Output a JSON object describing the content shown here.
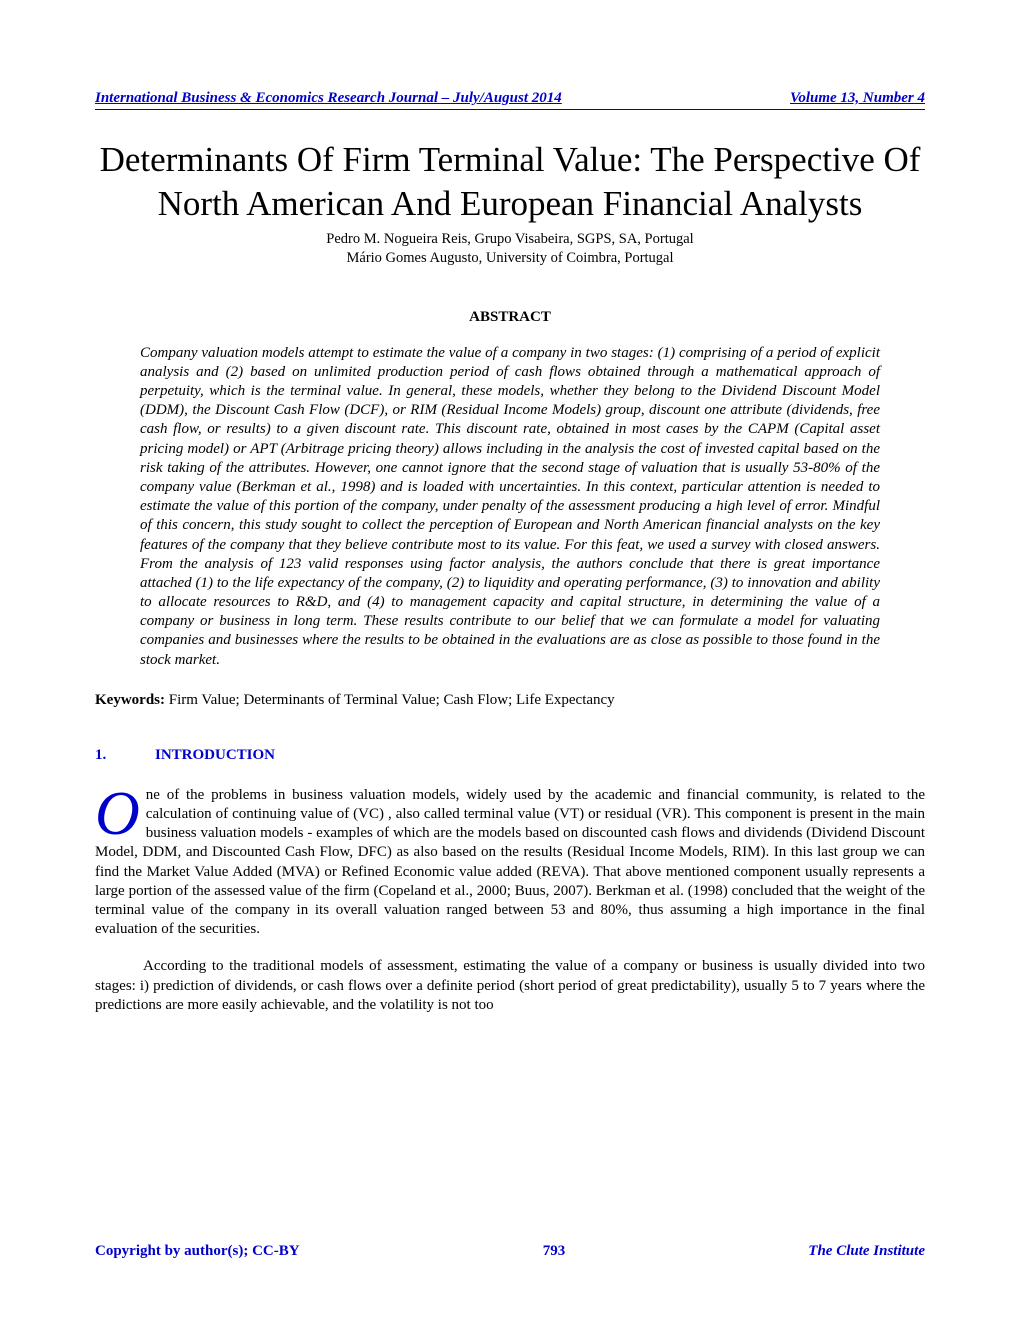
{
  "header": {
    "journal": "International Business & Economics Research Journal – July/August 2014",
    "volume": "Volume 13, Number 4"
  },
  "title": "Determinants Of Firm Terminal Value:  The Perspective Of North American And European Financial Analysts",
  "authors": {
    "line1": "Pedro M. Nogueira Reis, Grupo Visabeira, SGPS, SA, Portugal",
    "line2": "Mário Gomes Augusto, University of Coimbra, Portugal"
  },
  "abstract": {
    "heading": "ABSTRACT",
    "text": "Company valuation models attempt to estimate the value of a company in two stages: (1) comprising of a period of explicit analysis and (2) based on unlimited production period of cash flows obtained through a mathematical approach of perpetuity, which is the terminal value. In general, these models, whether they belong to the Dividend Discount Model (DDM), the Discount Cash Flow (DCF), or RIM (Residual Income Models) group, discount one attribute (dividends, free cash flow, or results) to a given discount rate. This discount rate, obtained in most cases by the CAPM (Capital asset pricing model) or APT (Arbitrage pricing theory) allows including in the analysis the cost of invested capital based on the risk taking of the attributes. However, one cannot ignore that the second stage of valuation that is usually 53-80% of the company value (Berkman et al., 1998) and is loaded with uncertainties. In this context, particular attention is needed to estimate the value of this portion of the company, under penalty of the assessment producing a high level of error. Mindful of this concern, this study sought to collect the perception of European and North American financial analysts on the key features of the company that they believe contribute most to its value. For this feat, we used a survey with closed answers. From the analysis of 123 valid responses using factor analysis, the authors conclude that there is great importance attached (1) to the life expectancy of the company, (2) to liquidity and operating performance, (3) to innovation and ability to allocate resources to R&D, and (4) to management capacity and capital structure, in determining the value of a company or business in long term. These results contribute to our belief that we can formulate a model for valuating companies and businesses where the results to be obtained in the evaluations are as close as possible to those found in the stock market."
  },
  "keywords": {
    "label": "Keywords:  ",
    "text": "Firm Value; Determinants of Terminal Value; Cash Flow; Life Expectancy"
  },
  "section1": {
    "number": "1.",
    "title": "INTRODUCTION"
  },
  "intro": {
    "dropcap": "O",
    "para1": "ne of the problems in business valuation models, widely used by the academic and financial community, is related to the calculation of continuing value of (VC) , also called terminal value (VT) or residual (VR). This component is present in the main business valuation models - examples of which are the models based on discounted cash flows and dividends (Dividend Discount Model, DDM, and Discounted Cash Flow, DFC) as also based on the results (Residual Income Models, RIM). In this last group we can find the Market Value Added (MVA) or Refined Economic value added (REVA). That above mentioned component usually represents a large portion of the assessed value of the firm (Copeland et al., 2000; Buus, 2007). Berkman et al. (1998) concluded that the weight of the terminal value of the company in its overall valuation ranged between 53 and 80%, thus assuming a high importance in the final evaluation of the securities.",
    "para2": "According to the traditional models of assessment, estimating the value of a company or business is usually divided into two stages: i) prediction of dividends, or cash flows over a definite period (short period of great predictability), usually 5 to 7 years where the predictions are more easily achievable, and the volatility is not too"
  },
  "footer": {
    "copyright": "Copyright by author(s); CC-BY",
    "page": "793",
    "publisher": "The Clute Institute"
  },
  "colors": {
    "link_blue": "#0000cc",
    "text_black": "#000000",
    "background": "#ffffff"
  },
  "typography": {
    "body_font": "Times New Roman",
    "title_size_pt": 26,
    "body_size_pt": 11,
    "abstract_size_pt": 11,
    "header_size_pt": 11
  }
}
